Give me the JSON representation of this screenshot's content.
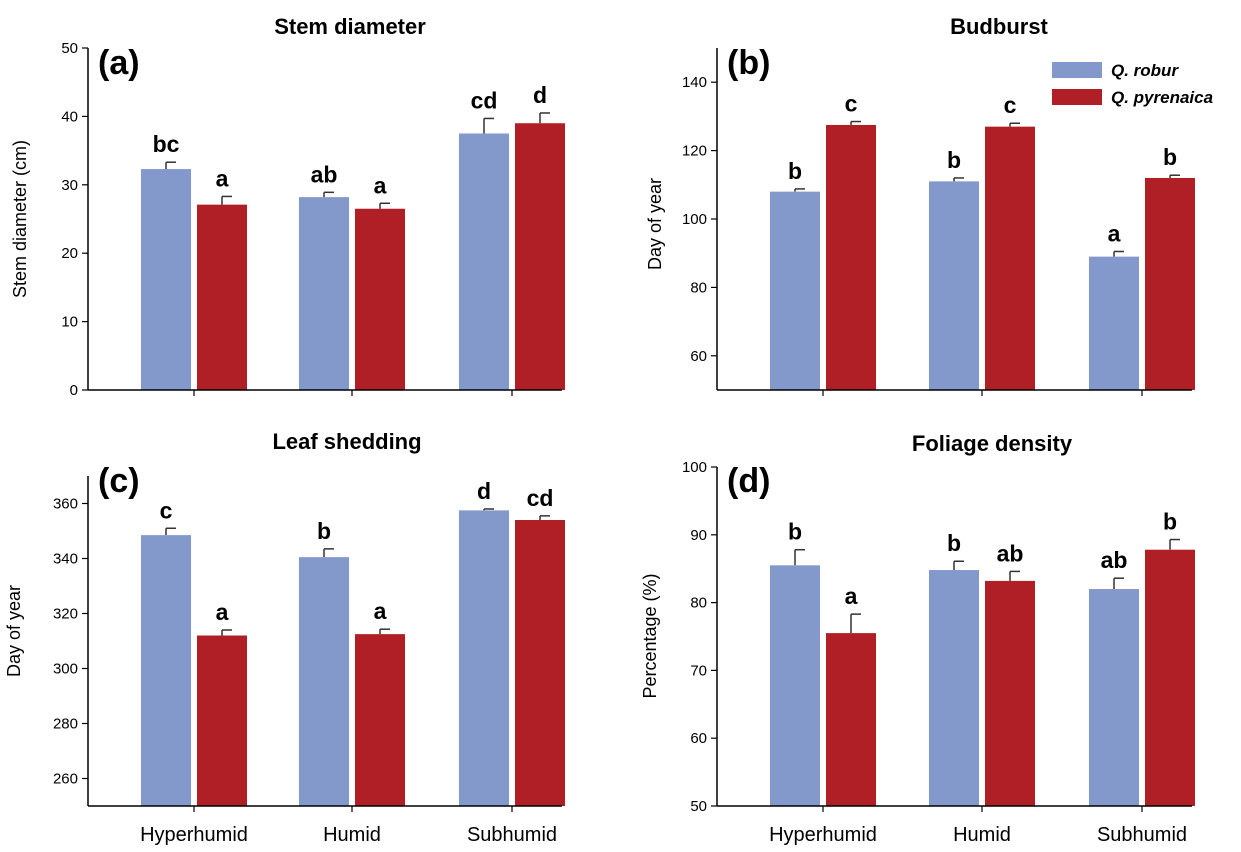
{
  "colors": {
    "q_robur": "#8399cc",
    "q_pyrenaica": "#b01f26"
  },
  "legend": {
    "placement": "top-right of panel (b)",
    "items": [
      "Q. robur",
      "Q. pyrenaica"
    ]
  },
  "chart_data": [
    {
      "type": "bar",
      "panel_label": "(a)",
      "title": "Stem diameter",
      "ylabel": "Stem diameter (cm)",
      "xlabel": "",
      "ylim": [
        0,
        50
      ],
      "yticks": [
        "0",
        "10",
        "20",
        "30",
        "40",
        "50"
      ],
      "categories": [
        "Hyperhumid",
        "Humid",
        "Subhumid"
      ],
      "show_category_labels": false,
      "series": [
        {
          "name": "Q. robur",
          "values": [
            32.3,
            28.2,
            37.5
          ],
          "errors": [
            1.0,
            0.7,
            2.2
          ],
          "letters": [
            "bc",
            "ab",
            "cd"
          ]
        },
        {
          "name": "Q. pyrenaica",
          "values": [
            27.1,
            26.5,
            39.0
          ],
          "errors": [
            1.2,
            0.8,
            1.5
          ],
          "letters": [
            "a",
            "a",
            "d"
          ]
        }
      ]
    },
    {
      "type": "bar",
      "panel_label": "(b)",
      "title": "Budburst",
      "ylabel": "Day of year",
      "xlabel": "",
      "ylim": [
        50,
        150
      ],
      "yticks": [
        "60",
        "80",
        "100",
        "120",
        "140"
      ],
      "categories": [
        "Hyperhumid",
        "Humid",
        "Subhumid"
      ],
      "show_category_labels": false,
      "show_legend": true,
      "series": [
        {
          "name": "Q. robur",
          "values": [
            108,
            111,
            89
          ],
          "errors": [
            0.8,
            1.0,
            1.5
          ],
          "letters": [
            "b",
            "b",
            "a"
          ]
        },
        {
          "name": "Q. pyrenaica",
          "values": [
            127.5,
            127,
            112
          ],
          "errors": [
            1.0,
            1.0,
            0.8
          ],
          "letters": [
            "c",
            "c",
            "b"
          ]
        }
      ]
    },
    {
      "type": "bar",
      "panel_label": "(c)",
      "title": "Leaf shedding",
      "ylabel": "Day of year",
      "xlabel": "",
      "ylim": [
        250,
        370
      ],
      "yticks": [
        "260",
        "280",
        "300",
        "320",
        "340",
        "360"
      ],
      "categories": [
        "Hyperhumid",
        "Humid",
        "Subhumid"
      ],
      "show_category_labels": true,
      "series": [
        {
          "name": "Q. robur",
          "values": [
            348.5,
            340.5,
            357.5
          ],
          "errors": [
            2.5,
            3.0,
            0.5
          ],
          "letters": [
            "c",
            "b",
            "d"
          ]
        },
        {
          "name": "Q. pyrenaica",
          "values": [
            312,
            312.5,
            354
          ],
          "errors": [
            2.0,
            1.8,
            1.5
          ],
          "letters": [
            "a",
            "a",
            "cd"
          ]
        }
      ]
    },
    {
      "type": "bar",
      "panel_label": "(d)",
      "title": "Foliage density",
      "ylabel": "Percentage (%)",
      "xlabel": "",
      "ylim": [
        50,
        100
      ],
      "yticks": [
        "50",
        "60",
        "70",
        "80",
        "90",
        "100"
      ],
      "categories": [
        "Hyperhumid",
        "Humid",
        "Subhumid"
      ],
      "show_category_labels": true,
      "series": [
        {
          "name": "Q. robur",
          "values": [
            85.5,
            84.8,
            82.0
          ],
          "errors": [
            2.3,
            1.3,
            1.6
          ],
          "letters": [
            "b",
            "b",
            "ab"
          ]
        },
        {
          "name": "Q. pyrenaica",
          "values": [
            75.5,
            83.2,
            87.8
          ],
          "errors": [
            2.8,
            1.4,
            1.5
          ],
          "letters": [
            "a",
            "ab",
            "b"
          ]
        }
      ]
    }
  ]
}
